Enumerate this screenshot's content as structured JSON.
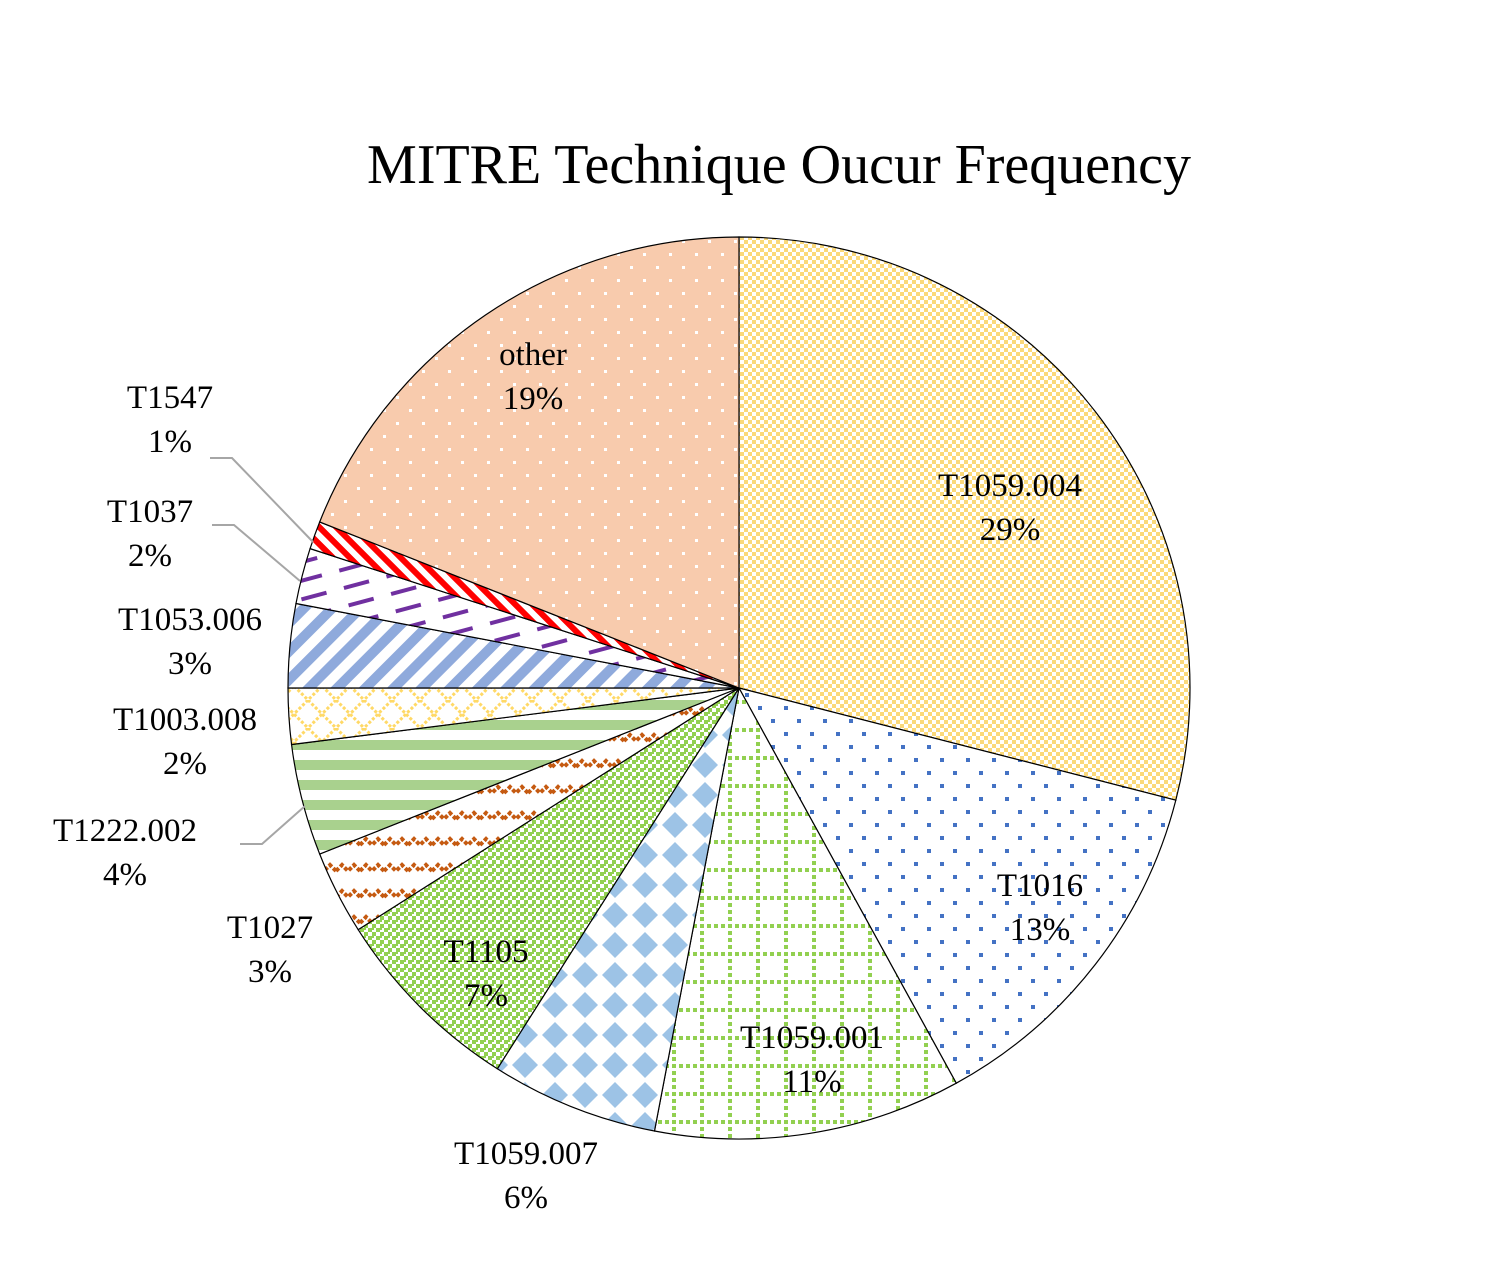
{
  "chart_data": {
    "type": "pie",
    "title": "MITRE Technique Oucur Frequency",
    "start_angle": "12 o'clock",
    "direction": "clockwise",
    "slices": [
      {
        "label": "T1059.004",
        "percent": 29,
        "percent_label": "29%",
        "color": "#fbd97a",
        "pattern": "small-check"
      },
      {
        "label": "T1016",
        "percent": 13,
        "percent_label": "13%",
        "color": "#4472c4",
        "pattern": "sparse-dots"
      },
      {
        "label": "T1059.001",
        "percent": 11,
        "percent_label": "11%",
        "color": "#92d050",
        "pattern": "dotted-grid"
      },
      {
        "label": "T1059.007",
        "percent": 6,
        "percent_label": "6%",
        "color": "#9dc3e6",
        "pattern": "diamonds"
      },
      {
        "label": "T1105",
        "percent": 7,
        "percent_label": "7%",
        "color": "#92d050",
        "pattern": "dense-dots"
      },
      {
        "label": "T1027",
        "percent": 3,
        "percent_label": "3%",
        "color": "#c55a11",
        "pattern": "wave"
      },
      {
        "label": "T1222.002",
        "percent": 4,
        "percent_label": "4%",
        "color": "#a9d18e",
        "pattern": "horizontal-stripes"
      },
      {
        "label": "T1003.008",
        "percent": 2,
        "percent_label": "2%",
        "color": "#ffd966",
        "pattern": "trellis"
      },
      {
        "label": "T1053.006",
        "percent": 3,
        "percent_label": "3%",
        "color": "#8faadc",
        "pattern": "diagonal-stripes"
      },
      {
        "label": "T1037",
        "percent": 2,
        "percent_label": "2%",
        "color": "#7030a0",
        "pattern": "dashes"
      },
      {
        "label": "T1547",
        "percent": 1,
        "percent_label": "1%",
        "color": "#ff0000",
        "pattern": "zigzag"
      },
      {
        "label": "other",
        "percent": 19,
        "percent_label": "19%",
        "color": "#f8cbad",
        "pattern": "white-dots"
      }
    ],
    "legend": "none",
    "data_labels": "category name and percentage"
  }
}
